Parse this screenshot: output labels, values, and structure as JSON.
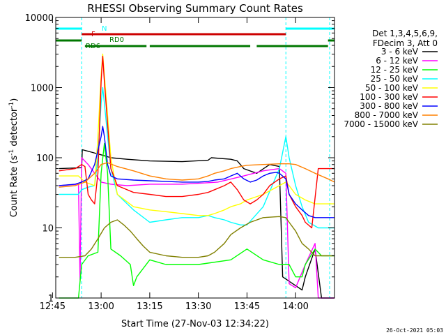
{
  "chart_data": {
    "type": "line",
    "title": "RHESSI Observing Summary Count Rates",
    "xlabel": "Start Time (27-Nov-03 12:34:22)",
    "ylabel": "Count Rate (s⁻¹ detector⁻¹)",
    "ylabel_main": "Count Rate (s",
    "ylabel_sup1": "-1",
    "ylabel_mid": " detector",
    "ylabel_sup2": "-1",
    "ylabel_end": ")",
    "y_scale": "log",
    "ylim": [
      1,
      10000
    ],
    "xlim_minutes": [
      -14,
      72
    ],
    "x_ticks": [
      {
        "label": "12:45",
        "m": -15
      },
      {
        "label": "13:00",
        "m": 0
      },
      {
        "label": "13:15",
        "m": 15
      },
      {
        "label": "13:30",
        "m": 30
      },
      {
        "label": "13:45",
        "m": 45
      },
      {
        "label": "14:00",
        "m": 60
      }
    ],
    "y_ticks": [
      {
        "label": "1",
        "v": 1
      },
      {
        "label": "10",
        "v": 10
      },
      {
        "label": "100",
        "v": 100
      },
      {
        "label": "1000",
        "v": 1000
      },
      {
        "label": "10000",
        "v": 10000
      }
    ],
    "legend_header": [
      "Det 1,3,4,5,6,9,",
      "FDecim 3, Att 0"
    ],
    "legend_position": "right",
    "series": [
      {
        "name": "3 - 6 keV",
        "color": "#000000",
        "points": [
          [
            -13,
            70
          ],
          [
            -6,
            72
          ],
          [
            -5.8,
            130
          ],
          [
            -3,
            120
          ],
          [
            0,
            110
          ],
          [
            3,
            100
          ],
          [
            8,
            95
          ],
          [
            15,
            90
          ],
          [
            25,
            88
          ],
          [
            33,
            92
          ],
          [
            34,
            100
          ],
          [
            40,
            95
          ],
          [
            42,
            90
          ],
          [
            44,
            70
          ],
          [
            48,
            60
          ],
          [
            52,
            80
          ],
          [
            55,
            75
          ],
          [
            56,
            2
          ],
          [
            60,
            1.5
          ],
          [
            62,
            1.3
          ],
          [
            63,
            2
          ],
          [
            66,
            5
          ],
          [
            68,
            1
          ],
          [
            70,
            1
          ],
          [
            72,
            1
          ]
        ]
      },
      {
        "name": "6 - 12 keV",
        "color": "#ff00ff",
        "points": [
          [
            -13,
            40
          ],
          [
            -7,
            42
          ],
          [
            -6.5,
            1.8
          ],
          [
            -6,
            100
          ],
          [
            -4,
            80
          ],
          [
            -2,
            60
          ],
          [
            0,
            45
          ],
          [
            3,
            42
          ],
          [
            8,
            40
          ],
          [
            15,
            42
          ],
          [
            25,
            42
          ],
          [
            33,
            44
          ],
          [
            36,
            45
          ],
          [
            44,
            55
          ],
          [
            50,
            65
          ],
          [
            55,
            70
          ],
          [
            57,
            60
          ],
          [
            58,
            1.6
          ],
          [
            60,
            1.4
          ],
          [
            63,
            3
          ],
          [
            66,
            6
          ],
          [
            67,
            1
          ],
          [
            72,
            1
          ]
        ]
      },
      {
        "name": "12 - 25 keV",
        "color": "#00ff00",
        "points": [
          [
            -13,
            1
          ],
          [
            -7,
            1
          ],
          [
            -6,
            3
          ],
          [
            -4,
            4
          ],
          [
            -1,
            4.5
          ],
          [
            0,
            60
          ],
          [
            1,
            160
          ],
          [
            2,
            60
          ],
          [
            3,
            5
          ],
          [
            6,
            4
          ],
          [
            9,
            3
          ],
          [
            10,
            1.5
          ],
          [
            11,
            2
          ],
          [
            15,
            3.5
          ],
          [
            20,
            3
          ],
          [
            30,
            3
          ],
          [
            40,
            3.5
          ],
          [
            45,
            5
          ],
          [
            50,
            3.5
          ],
          [
            55,
            3
          ],
          [
            58,
            3
          ],
          [
            60,
            2
          ],
          [
            62,
            2
          ],
          [
            63,
            3
          ],
          [
            66,
            5
          ],
          [
            68,
            4
          ],
          [
            70,
            4
          ],
          [
            72,
            4
          ]
        ]
      },
      {
        "name": "25 - 50 keV",
        "color": "#00ffff",
        "points": [
          [
            -13,
            30
          ],
          [
            -7,
            30
          ],
          [
            -6,
            35
          ],
          [
            -4,
            38
          ],
          [
            -2,
            40
          ],
          [
            -1,
            100
          ],
          [
            0,
            600
          ],
          [
            0.5,
            1000
          ],
          [
            1,
            600
          ],
          [
            2,
            200
          ],
          [
            3,
            70
          ],
          [
            5,
            30
          ],
          [
            10,
            18
          ],
          [
            15,
            12
          ],
          [
            20,
            13
          ],
          [
            25,
            14
          ],
          [
            30,
            14
          ],
          [
            33,
            15
          ],
          [
            35,
            14
          ],
          [
            38,
            13
          ],
          [
            40,
            12
          ],
          [
            43,
            11
          ],
          [
            45,
            11
          ],
          [
            50,
            20
          ],
          [
            55,
            70
          ],
          [
            57,
            200
          ],
          [
            58,
            100
          ],
          [
            60,
            40
          ],
          [
            62,
            20
          ],
          [
            64,
            12
          ],
          [
            67,
            10
          ],
          [
            70,
            10
          ],
          [
            72,
            10
          ]
        ]
      },
      {
        "name": "50 - 100 keV",
        "color": "#ffff00",
        "points": [
          [
            -13,
            55
          ],
          [
            -7,
            55
          ],
          [
            -5,
            45
          ],
          [
            -2,
            40
          ],
          [
            -1,
            200
          ],
          [
            0,
            1500
          ],
          [
            0.5,
            3000
          ],
          [
            1,
            1500
          ],
          [
            2,
            400
          ],
          [
            3,
            100
          ],
          [
            5,
            30
          ],
          [
            10,
            20
          ],
          [
            15,
            18
          ],
          [
            20,
            17
          ],
          [
            25,
            16
          ],
          [
            30,
            15
          ],
          [
            33,
            15
          ],
          [
            35,
            16
          ],
          [
            38,
            18
          ],
          [
            40,
            20
          ],
          [
            43,
            22
          ],
          [
            45,
            25
          ],
          [
            50,
            30
          ],
          [
            55,
            40
          ],
          [
            57,
            45
          ],
          [
            58,
            40
          ],
          [
            60,
            30
          ],
          [
            63,
            25
          ],
          [
            66,
            22
          ],
          [
            70,
            22
          ],
          [
            72,
            22
          ]
        ]
      },
      {
        "name": "100 - 300 keV",
        "color": "#ff0000",
        "points": [
          [
            -13,
            65
          ],
          [
            -8,
            70
          ],
          [
            -6,
            80
          ],
          [
            -5,
            75
          ],
          [
            -4,
            30
          ],
          [
            -3,
            25
          ],
          [
            -2,
            22
          ],
          [
            -1,
            60
          ],
          [
            0,
            1200
          ],
          [
            0.5,
            2800
          ],
          [
            1,
            1200
          ],
          [
            2,
            300
          ],
          [
            3,
            70
          ],
          [
            5,
            40
          ],
          [
            10,
            32
          ],
          [
            15,
            30
          ],
          [
            20,
            28
          ],
          [
            25,
            28
          ],
          [
            30,
            30
          ],
          [
            33,
            32
          ],
          [
            35,
            35
          ],
          [
            38,
            40
          ],
          [
            40,
            45
          ],
          [
            42,
            35
          ],
          [
            44,
            25
          ],
          [
            46,
            22
          ],
          [
            48,
            25
          ],
          [
            50,
            30
          ],
          [
            52,
            40
          ],
          [
            55,
            50
          ],
          [
            57,
            55
          ],
          [
            58,
            30
          ],
          [
            60,
            20
          ],
          [
            62,
            15
          ],
          [
            63,
            12
          ],
          [
            65,
            10
          ],
          [
            67,
            70
          ],
          [
            70,
            70
          ],
          [
            72,
            70
          ]
        ]
      },
      {
        "name": "300 - 800 keV",
        "color": "#0000ff",
        "points": [
          [
            -13,
            40
          ],
          [
            -8,
            42
          ],
          [
            -6,
            45
          ],
          [
            -4,
            50
          ],
          [
            -2,
            80
          ],
          [
            0,
            200
          ],
          [
            0.5,
            280
          ],
          [
            1,
            200
          ],
          [
            2,
            80
          ],
          [
            3,
            55
          ],
          [
            5,
            50
          ],
          [
            10,
            48
          ],
          [
            15,
            47
          ],
          [
            20,
            46
          ],
          [
            25,
            45
          ],
          [
            30,
            45
          ],
          [
            33,
            46
          ],
          [
            35,
            48
          ],
          [
            38,
            50
          ],
          [
            40,
            55
          ],
          [
            42,
            60
          ],
          [
            44,
            50
          ],
          [
            46,
            45
          ],
          [
            48,
            48
          ],
          [
            50,
            55
          ],
          [
            52,
            60
          ],
          [
            54,
            62
          ],
          [
            55,
            60
          ],
          [
            57,
            50
          ],
          [
            58,
            30
          ],
          [
            60,
            22
          ],
          [
            62,
            18
          ],
          [
            64,
            15
          ],
          [
            66,
            14
          ],
          [
            68,
            14
          ],
          [
            70,
            14
          ],
          [
            72,
            14
          ]
        ]
      },
      {
        "name": "800 - 7000 keV",
        "color": "#ff8000",
        "points": [
          [
            -13,
            38
          ],
          [
            -8,
            40
          ],
          [
            -5,
            45
          ],
          [
            -2,
            60
          ],
          [
            0,
            80
          ],
          [
            2,
            85
          ],
          [
            5,
            75
          ],
          [
            10,
            65
          ],
          [
            15,
            55
          ],
          [
            20,
            50
          ],
          [
            25,
            48
          ],
          [
            30,
            50
          ],
          [
            33,
            55
          ],
          [
            35,
            60
          ],
          [
            38,
            65
          ],
          [
            40,
            70
          ],
          [
            43,
            75
          ],
          [
            45,
            78
          ],
          [
            50,
            80
          ],
          [
            55,
            82
          ],
          [
            58,
            82
          ],
          [
            60,
            80
          ],
          [
            63,
            70
          ],
          [
            66,
            60
          ],
          [
            70,
            50
          ],
          [
            72,
            45
          ]
        ]
      },
      {
        "name": "7000 - 15000 keV",
        "color": "#808000",
        "points": [
          [
            -13,
            3.8
          ],
          [
            -8,
            3.8
          ],
          [
            -5,
            4
          ],
          [
            -3,
            5
          ],
          [
            -1,
            7
          ],
          [
            1,
            10
          ],
          [
            3,
            12
          ],
          [
            5,
            13
          ],
          [
            7,
            11
          ],
          [
            9,
            9
          ],
          [
            11,
            7
          ],
          [
            13,
            5.5
          ],
          [
            15,
            4.5
          ],
          [
            20,
            4
          ],
          [
            25,
            3.8
          ],
          [
            30,
            3.8
          ],
          [
            33,
            4
          ],
          [
            35,
            4.5
          ],
          [
            38,
            6
          ],
          [
            40,
            8
          ],
          [
            43,
            10
          ],
          [
            46,
            12
          ],
          [
            50,
            14
          ],
          [
            55,
            14.5
          ],
          [
            57,
            14
          ],
          [
            58,
            12
          ],
          [
            60,
            9
          ],
          [
            62,
            6
          ],
          [
            64,
            5
          ],
          [
            66,
            4
          ],
          [
            68,
            4
          ],
          [
            70,
            4
          ],
          [
            72,
            4
          ]
        ]
      }
    ],
    "flags": [
      {
        "label": "N",
        "color": "#00ffff",
        "row": 1,
        "segments": [
          [
            -14,
            -6
          ],
          [
            57,
            72
          ]
        ]
      },
      {
        "label": "F",
        "color": "#cc0000",
        "row": 2,
        "segments": [
          [
            -6,
            57
          ]
        ]
      },
      {
        "label": "RD0",
        "color": "#007700",
        "row": 3,
        "segments": [
          [
            -14,
            -6
          ],
          [
            70,
            72
          ]
        ]
      },
      {
        "label": "RD6",
        "color": "#007700",
        "row": 4,
        "segments": [
          [
            -5,
            14
          ],
          [
            15,
            46
          ],
          [
            48,
            70
          ]
        ]
      }
    ],
    "vlines_minutes": [
      -14,
      -6,
      57,
      70.5
    ],
    "timestamp": "26-Oct-2021 05:03"
  }
}
